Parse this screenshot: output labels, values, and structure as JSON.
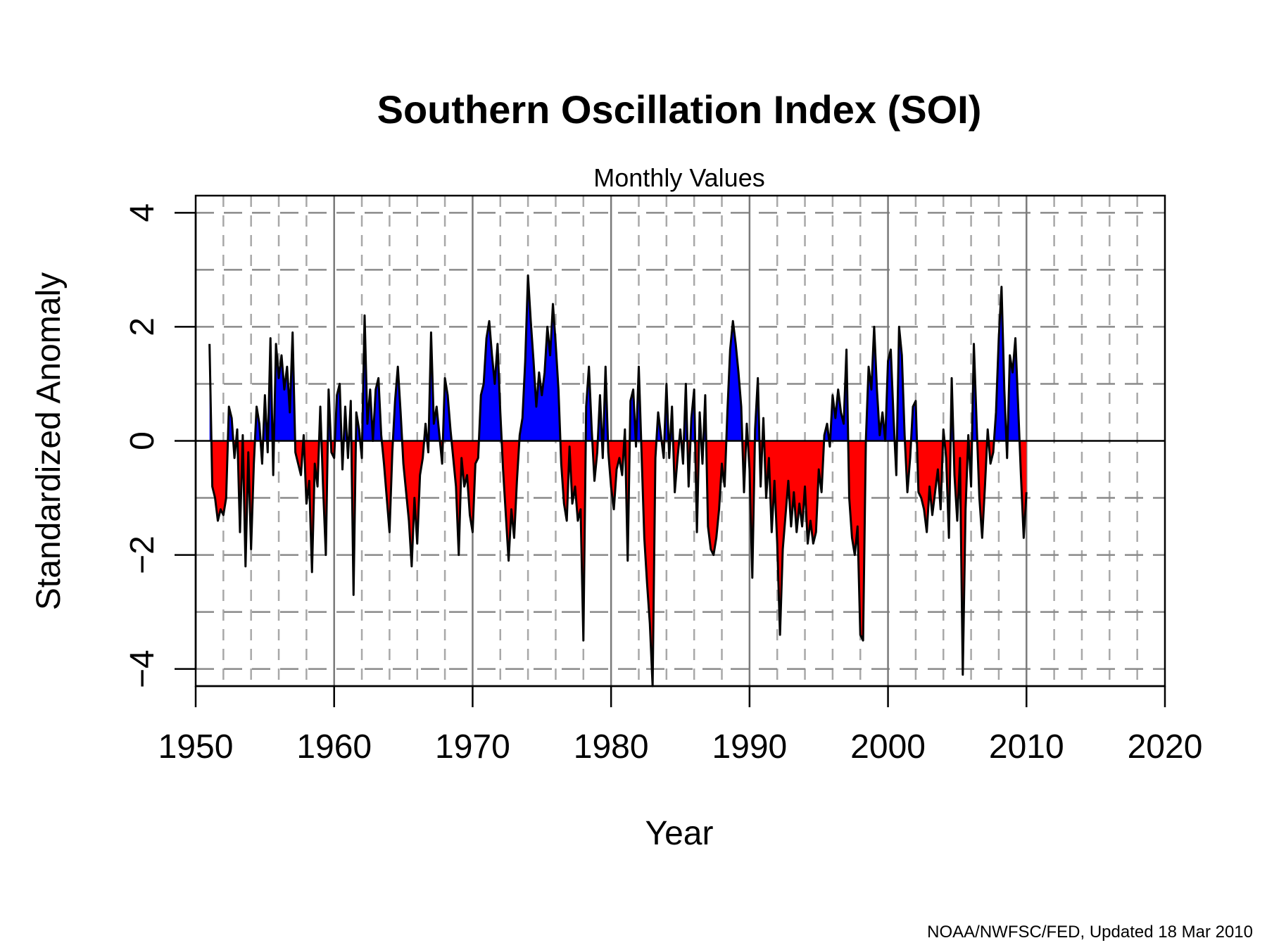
{
  "chart_data": {
    "type": "area",
    "title": "Southern Oscillation Index (SOI)",
    "subtitle": "Monthly Values",
    "xlabel": "Year",
    "ylabel": "Standardized Anomaly",
    "xlim": [
      1950,
      2020
    ],
    "ylim": [
      -4.3,
      4.3
    ],
    "xticks": [
      1950,
      1960,
      1970,
      1980,
      1990,
      2000,
      2010,
      2020
    ],
    "yticks": [
      -4,
      -2,
      0,
      2,
      4
    ],
    "grid": true,
    "fill_colors": {
      "positive": "#0000ff",
      "negative": "#ff0000"
    },
    "line_color": "#000000",
    "series": [
      {
        "points": [
          [
            1951.0,
            1.7
          ],
          [
            1951.2,
            -0.8
          ],
          [
            1951.4,
            -1.0
          ],
          [
            1951.6,
            -1.4
          ],
          [
            1951.8,
            -1.2
          ],
          [
            1952.0,
            -1.3
          ],
          [
            1952.2,
            -1.0
          ],
          [
            1952.4,
            0.6
          ],
          [
            1952.6,
            0.4
          ],
          [
            1952.8,
            -0.3
          ],
          [
            1953.0,
            0.2
          ],
          [
            1953.2,
            -1.6
          ],
          [
            1953.4,
            0.1
          ],
          [
            1953.6,
            -2.2
          ],
          [
            1953.8,
            -0.2
          ],
          [
            1954.0,
            -1.9
          ],
          [
            1954.2,
            -0.4
          ],
          [
            1954.4,
            0.6
          ],
          [
            1954.6,
            0.3
          ],
          [
            1954.8,
            -0.4
          ],
          [
            1955.0,
            0.8
          ],
          [
            1955.2,
            -0.2
          ],
          [
            1955.4,
            1.8
          ],
          [
            1955.6,
            -0.6
          ],
          [
            1955.8,
            1.7
          ],
          [
            1956.0,
            1.1
          ],
          [
            1956.2,
            1.5
          ],
          [
            1956.4,
            0.9
          ],
          [
            1956.6,
            1.3
          ],
          [
            1956.8,
            0.5
          ],
          [
            1957.0,
            1.9
          ],
          [
            1957.2,
            -0.2
          ],
          [
            1957.4,
            -0.4
          ],
          [
            1957.6,
            -0.6
          ],
          [
            1957.8,
            0.1
          ],
          [
            1958.0,
            -1.1
          ],
          [
            1958.2,
            -0.7
          ],
          [
            1958.4,
            -2.3
          ],
          [
            1958.6,
            -0.4
          ],
          [
            1958.8,
            -0.8
          ],
          [
            1959.0,
            0.6
          ],
          [
            1959.2,
            -0.8
          ],
          [
            1959.4,
            -2.0
          ],
          [
            1959.6,
            0.9
          ],
          [
            1959.8,
            -0.2
          ],
          [
            1960.0,
            -0.3
          ],
          [
            1960.2,
            0.8
          ],
          [
            1960.4,
            1.0
          ],
          [
            1960.6,
            -0.5
          ],
          [
            1960.8,
            0.6
          ],
          [
            1961.0,
            -0.3
          ],
          [
            1961.2,
            0.7
          ],
          [
            1961.4,
            -2.7
          ],
          [
            1961.6,
            0.5
          ],
          [
            1961.8,
            0.2
          ],
          [
            1962.0,
            -0.3
          ],
          [
            1962.2,
            2.2
          ],
          [
            1962.4,
            0.3
          ],
          [
            1962.6,
            0.9
          ],
          [
            1962.8,
            0.0
          ],
          [
            1963.0,
            0.9
          ],
          [
            1963.2,
            1.1
          ],
          [
            1963.4,
            0.1
          ],
          [
            1963.6,
            -0.4
          ],
          [
            1963.8,
            -1.0
          ],
          [
            1964.0,
            -1.6
          ],
          [
            1964.2,
            -0.2
          ],
          [
            1964.4,
            0.7
          ],
          [
            1964.6,
            1.3
          ],
          [
            1964.8,
            0.5
          ],
          [
            1965.0,
            -0.4
          ],
          [
            1965.2,
            -0.9
          ],
          [
            1965.4,
            -1.4
          ],
          [
            1965.6,
            -2.2
          ],
          [
            1965.8,
            -1.0
          ],
          [
            1966.0,
            -1.8
          ],
          [
            1966.2,
            -0.6
          ],
          [
            1966.4,
            -0.3
          ],
          [
            1966.6,
            0.3
          ],
          [
            1966.8,
            -0.2
          ],
          [
            1967.0,
            1.9
          ],
          [
            1967.2,
            0.3
          ],
          [
            1967.4,
            0.6
          ],
          [
            1967.6,
            0.1
          ],
          [
            1967.8,
            -0.4
          ],
          [
            1968.0,
            1.1
          ],
          [
            1968.2,
            0.8
          ],
          [
            1968.4,
            0.2
          ],
          [
            1968.6,
            -0.3
          ],
          [
            1968.8,
            -0.8
          ],
          [
            1969.0,
            -2.0
          ],
          [
            1969.2,
            -0.3
          ],
          [
            1969.4,
            -0.8
          ],
          [
            1969.6,
            -0.6
          ],
          [
            1969.8,
            -1.3
          ],
          [
            1970.0,
            -1.6
          ],
          [
            1970.2,
            -0.4
          ],
          [
            1970.4,
            -0.3
          ],
          [
            1970.6,
            0.8
          ],
          [
            1970.8,
            1.0
          ],
          [
            1971.0,
            1.8
          ],
          [
            1971.2,
            2.1
          ],
          [
            1971.4,
            1.5
          ],
          [
            1971.6,
            1.0
          ],
          [
            1971.8,
            1.7
          ],
          [
            1972.0,
            0.5
          ],
          [
            1972.2,
            -0.5
          ],
          [
            1972.4,
            -1.3
          ],
          [
            1972.6,
            -2.1
          ],
          [
            1972.8,
            -1.2
          ],
          [
            1973.0,
            -1.7
          ],
          [
            1973.2,
            -0.7
          ],
          [
            1973.4,
            0.1
          ],
          [
            1973.6,
            0.4
          ],
          [
            1973.8,
            1.4
          ],
          [
            1974.0,
            2.9
          ],
          [
            1974.2,
            2.1
          ],
          [
            1974.4,
            1.4
          ],
          [
            1974.6,
            0.6
          ],
          [
            1974.8,
            1.2
          ],
          [
            1975.0,
            0.8
          ],
          [
            1975.2,
            1.2
          ],
          [
            1975.4,
            2.0
          ],
          [
            1975.6,
            1.5
          ],
          [
            1975.8,
            2.4
          ],
          [
            1976.0,
            1.7
          ],
          [
            1976.2,
            0.9
          ],
          [
            1976.4,
            -0.4
          ],
          [
            1976.6,
            -1.1
          ],
          [
            1976.8,
            -1.4
          ],
          [
            1977.0,
            -0.1
          ],
          [
            1977.2,
            -1.1
          ],
          [
            1977.4,
            -0.8
          ],
          [
            1977.6,
            -1.4
          ],
          [
            1977.8,
            -1.2
          ],
          [
            1978.0,
            -3.5
          ],
          [
            1978.2,
            0.6
          ],
          [
            1978.4,
            1.3
          ],
          [
            1978.6,
            0.2
          ],
          [
            1978.8,
            -0.7
          ],
          [
            1979.0,
            -0.2
          ],
          [
            1979.2,
            0.8
          ],
          [
            1979.4,
            -0.3
          ],
          [
            1979.6,
            1.3
          ],
          [
            1979.8,
            -0.2
          ],
          [
            1980.0,
            -0.8
          ],
          [
            1980.2,
            -1.2
          ],
          [
            1980.4,
            -0.5
          ],
          [
            1980.6,
            -0.3
          ],
          [
            1980.8,
            -0.6
          ],
          [
            1981.0,
            0.2
          ],
          [
            1981.2,
            -2.1
          ],
          [
            1981.4,
            0.7
          ],
          [
            1981.6,
            0.9
          ],
          [
            1981.8,
            -0.1
          ],
          [
            1982.0,
            1.3
          ],
          [
            1982.2,
            -0.2
          ],
          [
            1982.4,
            -1.7
          ],
          [
            1982.6,
            -2.5
          ],
          [
            1982.8,
            -3.2
          ],
          [
            1983.0,
            -4.3
          ],
          [
            1983.2,
            -0.3
          ],
          [
            1983.4,
            0.5
          ],
          [
            1983.6,
            0.1
          ],
          [
            1983.8,
            -0.3
          ],
          [
            1984.0,
            1.0
          ],
          [
            1984.2,
            -0.3
          ],
          [
            1984.4,
            0.6
          ],
          [
            1984.6,
            -0.9
          ],
          [
            1984.8,
            -0.3
          ],
          [
            1985.0,
            0.2
          ],
          [
            1985.2,
            -0.4
          ],
          [
            1985.4,
            1.0
          ],
          [
            1985.6,
            -0.8
          ],
          [
            1985.8,
            0.4
          ],
          [
            1986.0,
            0.9
          ],
          [
            1986.2,
            -1.6
          ],
          [
            1986.4,
            0.5
          ],
          [
            1986.6,
            -0.4
          ],
          [
            1986.8,
            0.8
          ],
          [
            1987.0,
            -1.5
          ],
          [
            1987.2,
            -1.9
          ],
          [
            1987.4,
            -2.0
          ],
          [
            1987.6,
            -1.7
          ],
          [
            1987.8,
            -1.2
          ],
          [
            1988.0,
            -0.4
          ],
          [
            1988.2,
            -0.8
          ],
          [
            1988.4,
            0.5
          ],
          [
            1988.6,
            1.6
          ],
          [
            1988.8,
            2.1
          ],
          [
            1989.0,
            1.7
          ],
          [
            1989.2,
            1.2
          ],
          [
            1989.4,
            0.6
          ],
          [
            1989.6,
            -0.9
          ],
          [
            1989.8,
            0.3
          ],
          [
            1990.0,
            -0.5
          ],
          [
            1990.2,
            -2.4
          ],
          [
            1990.4,
            0.2
          ],
          [
            1990.6,
            1.1
          ],
          [
            1990.8,
            -0.8
          ],
          [
            1991.0,
            0.4
          ],
          [
            1991.2,
            -1.0
          ],
          [
            1991.4,
            -0.3
          ],
          [
            1991.6,
            -1.6
          ],
          [
            1991.8,
            -0.7
          ],
          [
            1992.0,
            -1.8
          ],
          [
            1992.2,
            -3.4
          ],
          [
            1992.4,
            -1.9
          ],
          [
            1992.6,
            -1.3
          ],
          [
            1992.8,
            -0.7
          ],
          [
            1993.0,
            -1.5
          ],
          [
            1993.2,
            -0.9
          ],
          [
            1993.4,
            -1.6
          ],
          [
            1993.6,
            -1.1
          ],
          [
            1993.8,
            -1.5
          ],
          [
            1994.0,
            -0.8
          ],
          [
            1994.2,
            -1.8
          ],
          [
            1994.4,
            -1.4
          ],
          [
            1994.6,
            -1.8
          ],
          [
            1994.8,
            -1.6
          ],
          [
            1995.0,
            -0.5
          ],
          [
            1995.2,
            -0.9
          ],
          [
            1995.4,
            0.1
          ],
          [
            1995.6,
            0.3
          ],
          [
            1995.8,
            -0.1
          ],
          [
            1996.0,
            0.8
          ],
          [
            1996.2,
            0.4
          ],
          [
            1996.4,
            0.9
          ],
          [
            1996.6,
            0.5
          ],
          [
            1996.8,
            0.3
          ],
          [
            1997.0,
            1.6
          ],
          [
            1997.2,
            -1.0
          ],
          [
            1997.4,
            -1.7
          ],
          [
            1997.6,
            -2.0
          ],
          [
            1997.8,
            -1.5
          ],
          [
            1998.0,
            -3.4
          ],
          [
            1998.2,
            -3.5
          ],
          [
            1998.4,
            0.0
          ],
          [
            1998.6,
            1.3
          ],
          [
            1998.8,
            0.9
          ],
          [
            1999.0,
            2.0
          ],
          [
            1999.2,
            0.9
          ],
          [
            1999.4,
            0.1
          ],
          [
            1999.6,
            0.5
          ],
          [
            1999.8,
            0.0
          ],
          [
            2000.0,
            1.4
          ],
          [
            2000.2,
            1.6
          ],
          [
            2000.4,
            0.4
          ],
          [
            2000.6,
            -0.6
          ],
          [
            2000.8,
            2.0
          ],
          [
            2001.0,
            1.5
          ],
          [
            2001.2,
            0.1
          ],
          [
            2001.4,
            -0.9
          ],
          [
            2001.6,
            -0.3
          ],
          [
            2001.8,
            0.6
          ],
          [
            2002.0,
            0.7
          ],
          [
            2002.2,
            -0.9
          ],
          [
            2002.4,
            -1.0
          ],
          [
            2002.6,
            -1.2
          ],
          [
            2002.8,
            -1.6
          ],
          [
            2003.0,
            -0.8
          ],
          [
            2003.2,
            -1.3
          ],
          [
            2003.4,
            -0.9
          ],
          [
            2003.6,
            -0.5
          ],
          [
            2003.8,
            -1.2
          ],
          [
            2004.0,
            0.2
          ],
          [
            2004.2,
            -0.3
          ],
          [
            2004.4,
            -1.7
          ],
          [
            2004.6,
            1.1
          ],
          [
            2004.8,
            -0.6
          ],
          [
            2005.0,
            -1.4
          ],
          [
            2005.2,
            -0.3
          ],
          [
            2005.4,
            -4.1
          ],
          [
            2005.6,
            -1.2
          ],
          [
            2005.8,
            0.1
          ],
          [
            2006.0,
            -0.8
          ],
          [
            2006.2,
            1.7
          ],
          [
            2006.4,
            0.3
          ],
          [
            2006.6,
            -1.0
          ],
          [
            2006.8,
            -1.7
          ],
          [
            2007.0,
            -0.8
          ],
          [
            2007.2,
            0.2
          ],
          [
            2007.4,
            -0.4
          ],
          [
            2007.6,
            -0.2
          ],
          [
            2007.8,
            0.5
          ],
          [
            2008.0,
            1.8
          ],
          [
            2008.2,
            2.7
          ],
          [
            2008.4,
            0.9
          ],
          [
            2008.6,
            -0.3
          ],
          [
            2008.8,
            1.5
          ],
          [
            2009.0,
            1.2
          ],
          [
            2009.2,
            1.8
          ],
          [
            2009.4,
            0.6
          ],
          [
            2009.6,
            -0.6
          ],
          [
            2009.8,
            -1.7
          ],
          [
            2010.0,
            -0.9
          ]
        ]
      }
    ]
  },
  "footer": {
    "credit": "NOAA/NWFSC/FED, Updated  18 Mar 2010"
  }
}
